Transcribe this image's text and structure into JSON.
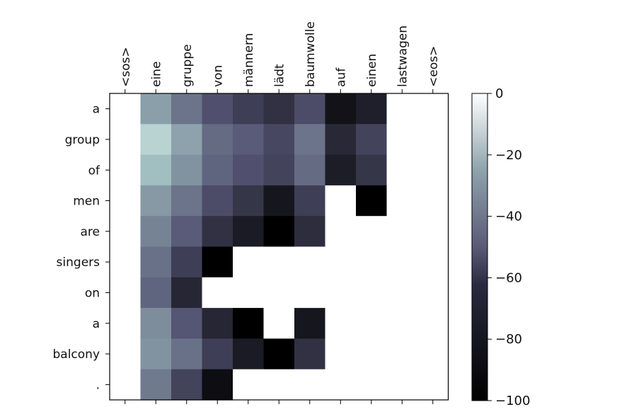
{
  "chart_data": {
    "type": "heatmap",
    "title": "",
    "x_tick_labels": [
      "<sos>",
      "eine",
      "gruppe",
      "von",
      "männern",
      "lädt",
      "baumwolle",
      "auf",
      "einen",
      "lastwagen",
      "<eos>"
    ],
    "y_tick_labels": [
      "a",
      "group",
      "of",
      "men",
      "are",
      "singers",
      "on",
      "a",
      "balcony",
      "."
    ],
    "x_axis_position": "top",
    "colormap": "bone",
    "vmin": -100,
    "vmax": 0,
    "colorbar": {
      "position": "right",
      "ticks": [
        0,
        -20,
        -40,
        -60,
        -80,
        -100
      ],
      "tick_labels": [
        "0",
        "−20",
        "−40",
        "−60",
        "−80",
        "−100"
      ]
    },
    "values": [
      [
        0,
        -38,
        -52,
        -64,
        -72,
        -78,
        -66,
        -92,
        -86,
        0,
        0
      ],
      [
        0,
        -20,
        -37,
        -55,
        -60,
        -68,
        -52,
        -82,
        -70,
        0,
        0
      ],
      [
        0,
        -28,
        -42,
        -57,
        -64,
        -70,
        -55,
        -87,
        -76,
        0,
        0
      ],
      [
        0,
        -40,
        -52,
        -66,
        -76,
        -90,
        -72,
        0,
        -100,
        0,
        0
      ],
      [
        0,
        -47,
        -60,
        -78,
        -88,
        -100,
        -80,
        0,
        0,
        0,
        0
      ],
      [
        0,
        -53,
        -72,
        -100,
        0,
        0,
        0,
        0,
        0,
        0,
        0
      ],
      [
        0,
        -57,
        -83,
        0,
        0,
        0,
        0,
        0,
        0,
        0,
        0
      ],
      [
        0,
        -44,
        -62,
        -83,
        -100,
        0,
        -90,
        0,
        0,
        0,
        0
      ],
      [
        0,
        -42,
        -53,
        -72,
        -88,
        -100,
        -78,
        0,
        0,
        0,
        0
      ],
      [
        0,
        -50,
        -70,
        -94,
        0,
        0,
        0,
        0,
        0,
        0,
        0
      ]
    ]
  }
}
